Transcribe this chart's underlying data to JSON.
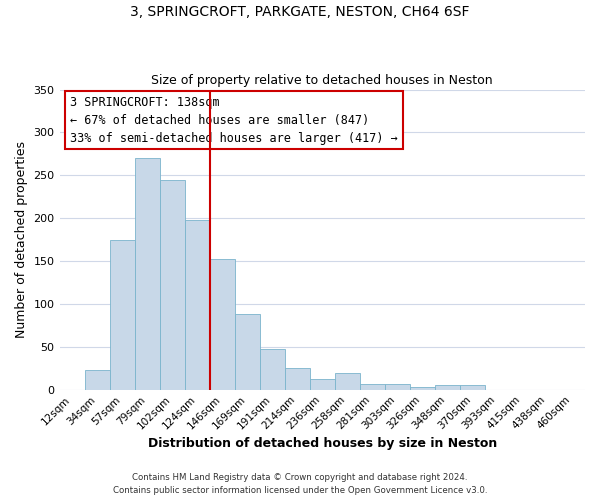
{
  "title": "3, SPRINGCROFT, PARKGATE, NESTON, CH64 6SF",
  "subtitle": "Size of property relative to detached houses in Neston",
  "xlabel": "Distribution of detached houses by size in Neston",
  "ylabel": "Number of detached properties",
  "bar_color": "#c8d8e8",
  "bar_edge_color": "#7ab4cc",
  "categories": [
    "12sqm",
    "34sqm",
    "57sqm",
    "79sqm",
    "102sqm",
    "124sqm",
    "146sqm",
    "169sqm",
    "191sqm",
    "214sqm",
    "236sqm",
    "258sqm",
    "281sqm",
    "303sqm",
    "326sqm",
    "348sqm",
    "370sqm",
    "393sqm",
    "415sqm",
    "438sqm",
    "460sqm"
  ],
  "values": [
    0,
    23,
    175,
    270,
    245,
    198,
    153,
    88,
    47,
    25,
    13,
    20,
    7,
    7,
    3,
    5,
    5,
    0,
    0,
    0,
    0
  ],
  "vline_x": 5.5,
  "vline_color": "#cc0000",
  "annotation_title": "3 SPRINGCROFT: 138sqm",
  "annotation_line1": "← 67% of detached houses are smaller (847)",
  "annotation_line2": "33% of semi-detached houses are larger (417) →",
  "annotation_box_color": "#ffffff",
  "annotation_box_edge": "#cc0000",
  "ylim": [
    0,
    350
  ],
  "yticks": [
    0,
    50,
    100,
    150,
    200,
    250,
    300,
    350
  ],
  "footer1": "Contains HM Land Registry data © Crown copyright and database right 2024.",
  "footer2": "Contains public sector information licensed under the Open Government Licence v3.0.",
  "background_color": "#ffffff",
  "grid_color": "#d0d8e8"
}
